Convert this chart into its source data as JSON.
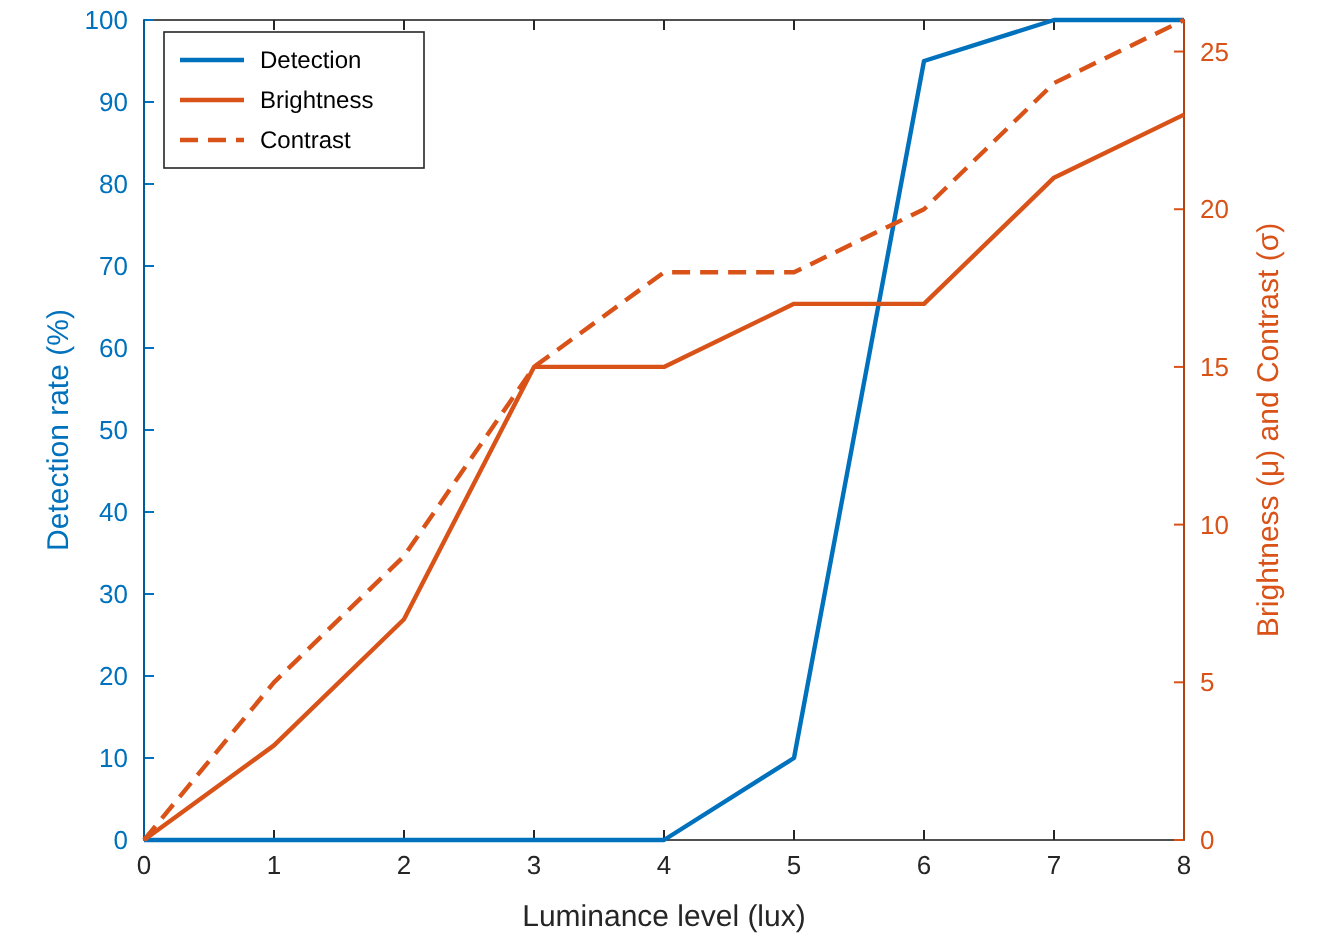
{
  "chart_data": {
    "type": "line",
    "xlabel": "Luminance level (lux)",
    "ylabel": "Detection rate (%)",
    "y2label": "Brightness (μ) and Contrast (σ)",
    "x": [
      0,
      1,
      2,
      3,
      4,
      5,
      6,
      7,
      8
    ],
    "xlim": [
      0,
      8
    ],
    "xticks": [
      0,
      1,
      2,
      3,
      4,
      5,
      6,
      7,
      8
    ],
    "ylim": [
      0,
      100
    ],
    "yticks": [
      0,
      10,
      20,
      30,
      40,
      50,
      60,
      70,
      80,
      90,
      100
    ],
    "y2lim": [
      0,
      26
    ],
    "y2ticks": [
      0,
      5,
      10,
      15,
      20,
      25
    ],
    "legend": "top left",
    "grid": false,
    "series": [
      {
        "name": "Detection",
        "color": "#0072bd",
        "values": [
          0,
          0,
          0,
          0,
          0,
          10,
          95,
          100,
          100
        ],
        "line_style": "solid"
      },
      {
        "name": "Brightness",
        "color": "#d95319",
        "axis": "y2",
        "values": [
          0,
          3,
          7,
          15,
          15,
          17,
          17,
          21,
          23
        ],
        "line_style": "solid"
      },
      {
        "name": "Contrast",
        "color": "#d95319",
        "axis": "y2",
        "values": [
          0,
          5,
          9,
          15,
          18,
          18,
          20,
          24,
          26
        ],
        "line_style": "dashed"
      }
    ]
  }
}
